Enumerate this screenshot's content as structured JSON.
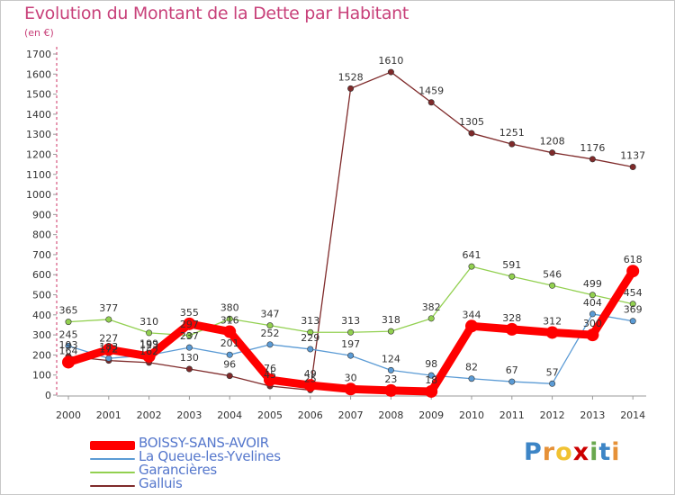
{
  "title": "Evolution du Montant de la Dette par Habitant",
  "subtitle": "(en €)",
  "logo": {
    "text": "Proxiti",
    "colors": [
      "#3d85c6",
      "#e69138",
      "#f1c232",
      "#cc0000",
      "#6aa84f",
      "#3d85c6",
      "#e69138"
    ]
  },
  "chart_data": {
    "type": "line",
    "x": [
      "2000",
      "2001",
      "2002",
      "2003",
      "2004",
      "2005",
      "2006",
      "2007",
      "2008",
      "2009",
      "2010",
      "2011",
      "2012",
      "2013",
      "2014"
    ],
    "ylim": [
      0,
      1700
    ],
    "yticks": [
      "0",
      "100",
      "200",
      "300",
      "400",
      "500",
      "600",
      "700",
      "800",
      "900",
      "1000",
      "1100",
      "1200",
      "1300",
      "1400",
      "1500",
      "1600",
      "1700"
    ],
    "grid": false,
    "legend": "bottom-left",
    "series": [
      {
        "name": "BOISSY-SANS-AVOIR",
        "color": "#ff0000",
        "values": [
          164,
          227,
          193,
          355,
          316,
          76,
          49,
          30,
          23,
          18,
          344,
          328,
          312,
          300,
          618
        ],
        "labels": [
          "164",
          "227",
          "193",
          "355",
          "316",
          "76",
          "49",
          "30",
          "23",
          "18",
          "344",
          "328",
          "312",
          "300",
          "618"
        ]
      },
      {
        "name": "La Queue-les-Yvelines",
        "color": "#5b9bd5",
        "values": [
          245,
          183,
          199,
          237,
          201,
          252,
          229,
          197,
          124,
          98,
          82,
          67,
          57,
          404,
          369
        ],
        "labels": [
          "245",
          "183",
          "199",
          "237",
          "201",
          "252",
          "229",
          "197",
          "124",
          "98",
          "82",
          "67",
          "57",
          "404",
          "369"
        ]
      },
      {
        "name": "Garancières",
        "color": "#92d050",
        "values": [
          365,
          377,
          310,
          297,
          380,
          347,
          313,
          313,
          318,
          382,
          641,
          591,
          546,
          499,
          454
        ],
        "labels": [
          "365",
          "377",
          "310",
          "297",
          "380",
          "347",
          "313",
          "313",
          "318",
          "382",
          "641",
          "591",
          "546",
          "499",
          "454"
        ]
      },
      {
        "name": "Galluis",
        "color": "#7f2a2a",
        "values": [
          193,
          172,
          162,
          130,
          96,
          45,
          25,
          1528,
          1610,
          1459,
          1305,
          1251,
          1208,
          1176,
          1137
        ],
        "labels": [
          "193",
          "172",
          "162",
          "130",
          "96",
          "45",
          "25",
          "1528",
          "1610",
          "1459",
          "1305",
          "1251",
          "1208",
          "1176",
          "1137"
        ]
      }
    ]
  }
}
